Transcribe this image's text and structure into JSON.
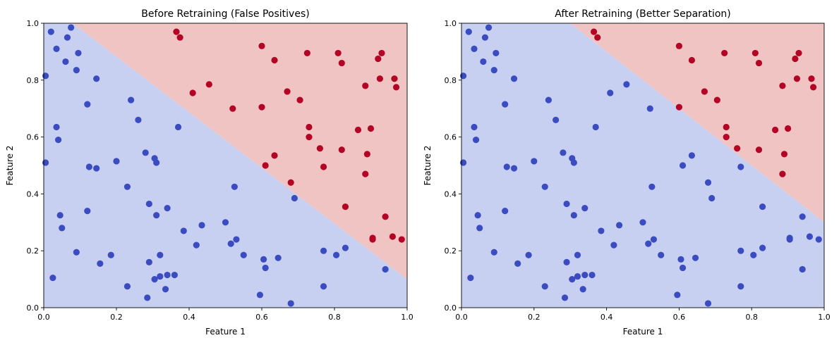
{
  "colors": {
    "class0_region": "#c8d0f2",
    "class1_region": "#efc4c3",
    "class0_point": "#3b4cc0",
    "class1_point": "#b40426"
  },
  "chart_data": [
    {
      "type": "scatter",
      "title": "Before Retraining (False Positives)",
      "xlabel": "Feature 1",
      "ylabel": "Feature 2",
      "xlim": [
        0,
        1
      ],
      "ylim": [
        0,
        1
      ],
      "xticks": [
        "0.0",
        "0.2",
        "0.4",
        "0.6",
        "0.8",
        "1.0"
      ],
      "yticks": [
        "0.0",
        "0.2",
        "0.4",
        "0.6",
        "0.8",
        "1.0"
      ],
      "grid": false,
      "decision_boundary": [
        [
          0.08,
          1.0
        ],
        [
          1.0,
          0.1
        ]
      ],
      "points_class0": [
        [
          0.005,
          0.815
        ],
        [
          0.02,
          0.97
        ],
        [
          0.035,
          0.91
        ],
        [
          0.06,
          0.865
        ],
        [
          0.065,
          0.95
        ],
        [
          0.075,
          0.985
        ],
        [
          0.09,
          0.835
        ],
        [
          0.095,
          0.895
        ],
        [
          0.145,
          0.805
        ],
        [
          0.12,
          0.715
        ],
        [
          0.035,
          0.635
        ],
        [
          0.04,
          0.59
        ],
        [
          0.005,
          0.51
        ],
        [
          0.125,
          0.495
        ],
        [
          0.145,
          0.49
        ],
        [
          0.2,
          0.515
        ],
        [
          0.24,
          0.73
        ],
        [
          0.26,
          0.66
        ],
        [
          0.28,
          0.545
        ],
        [
          0.305,
          0.525
        ],
        [
          0.31,
          0.51
        ],
        [
          0.37,
          0.635
        ],
        [
          0.23,
          0.425
        ],
        [
          0.12,
          0.34
        ],
        [
          0.045,
          0.325
        ],
        [
          0.05,
          0.28
        ],
        [
          0.29,
          0.365
        ],
        [
          0.31,
          0.325
        ],
        [
          0.34,
          0.35
        ],
        [
          0.385,
          0.27
        ],
        [
          0.435,
          0.29
        ],
        [
          0.42,
          0.22
        ],
        [
          0.5,
          0.3
        ],
        [
          0.53,
          0.24
        ],
        [
          0.525,
          0.425
        ],
        [
          0.515,
          0.225
        ],
        [
          0.55,
          0.185
        ],
        [
          0.09,
          0.195
        ],
        [
          0.155,
          0.155
        ],
        [
          0.185,
          0.185
        ],
        [
          0.025,
          0.105
        ],
        [
          0.23,
          0.075
        ],
        [
          0.29,
          0.16
        ],
        [
          0.32,
          0.185
        ],
        [
          0.305,
          0.1
        ],
        [
          0.32,
          0.11
        ],
        [
          0.34,
          0.115
        ],
        [
          0.36,
          0.115
        ],
        [
          0.335,
          0.065
        ],
        [
          0.285,
          0.035
        ],
        [
          0.605,
          0.17
        ],
        [
          0.61,
          0.14
        ],
        [
          0.645,
          0.175
        ],
        [
          0.595,
          0.045
        ],
        [
          0.69,
          0.385
        ],
        [
          0.68,
          0.015
        ],
        [
          0.77,
          0.2
        ],
        [
          0.77,
          0.075
        ],
        [
          0.805,
          0.185
        ],
        [
          0.83,
          0.21
        ],
        [
          0.94,
          0.135
        ]
      ],
      "points_class1": [
        [
          0.365,
          0.97
        ],
        [
          0.375,
          0.95
        ],
        [
          0.41,
          0.755
        ],
        [
          0.455,
          0.785
        ],
        [
          0.52,
          0.7
        ],
        [
          0.6,
          0.92
        ],
        [
          0.635,
          0.87
        ],
        [
          0.6,
          0.705
        ],
        [
          0.67,
          0.76
        ],
        [
          0.705,
          0.73
        ],
        [
          0.725,
          0.895
        ],
        [
          0.81,
          0.895
        ],
        [
          0.82,
          0.86
        ],
        [
          0.93,
          0.895
        ],
        [
          0.92,
          0.875
        ],
        [
          0.925,
          0.805
        ],
        [
          0.885,
          0.78
        ],
        [
          0.965,
          0.805
        ],
        [
          0.97,
          0.775
        ],
        [
          0.73,
          0.635
        ],
        [
          0.73,
          0.6
        ],
        [
          0.76,
          0.56
        ],
        [
          0.77,
          0.495
        ],
        [
          0.82,
          0.555
        ],
        [
          0.865,
          0.625
        ],
        [
          0.9,
          0.63
        ],
        [
          0.89,
          0.54
        ],
        [
          0.885,
          0.47
        ],
        [
          0.61,
          0.5
        ],
        [
          0.635,
          0.535
        ],
        [
          0.68,
          0.44
        ],
        [
          0.83,
          0.355
        ],
        [
          0.94,
          0.32
        ],
        [
          0.905,
          0.245
        ],
        [
          0.905,
          0.24
        ],
        [
          0.96,
          0.25
        ],
        [
          0.985,
          0.24
        ]
      ]
    },
    {
      "type": "scatter",
      "title": "After Retraining (Better Separation)",
      "xlabel": "Feature 1",
      "ylabel": "Feature 2",
      "xlim": [
        0,
        1
      ],
      "ylim": [
        0,
        1
      ],
      "xticks": [
        "0.0",
        "0.2",
        "0.4",
        "0.6",
        "0.8",
        "1.0"
      ],
      "yticks": [
        "0.0",
        "0.2",
        "0.4",
        "0.6",
        "0.8",
        "1.0"
      ],
      "grid": false,
      "decision_boundary": [
        [
          0.3,
          1.0
        ],
        [
          1.0,
          0.3
        ]
      ],
      "points_class0": [
        [
          0.005,
          0.815
        ],
        [
          0.02,
          0.97
        ],
        [
          0.035,
          0.91
        ],
        [
          0.06,
          0.865
        ],
        [
          0.065,
          0.95
        ],
        [
          0.075,
          0.985
        ],
        [
          0.09,
          0.835
        ],
        [
          0.095,
          0.895
        ],
        [
          0.145,
          0.805
        ],
        [
          0.12,
          0.715
        ],
        [
          0.035,
          0.635
        ],
        [
          0.04,
          0.59
        ],
        [
          0.005,
          0.51
        ],
        [
          0.125,
          0.495
        ],
        [
          0.145,
          0.49
        ],
        [
          0.2,
          0.515
        ],
        [
          0.24,
          0.73
        ],
        [
          0.26,
          0.66
        ],
        [
          0.28,
          0.545
        ],
        [
          0.305,
          0.525
        ],
        [
          0.31,
          0.51
        ],
        [
          0.37,
          0.635
        ],
        [
          0.23,
          0.425
        ],
        [
          0.12,
          0.34
        ],
        [
          0.045,
          0.325
        ],
        [
          0.05,
          0.28
        ],
        [
          0.29,
          0.365
        ],
        [
          0.31,
          0.325
        ],
        [
          0.34,
          0.35
        ],
        [
          0.385,
          0.27
        ],
        [
          0.435,
          0.29
        ],
        [
          0.42,
          0.22
        ],
        [
          0.5,
          0.3
        ],
        [
          0.53,
          0.24
        ],
        [
          0.525,
          0.425
        ],
        [
          0.515,
          0.225
        ],
        [
          0.55,
          0.185
        ],
        [
          0.09,
          0.195
        ],
        [
          0.155,
          0.155
        ],
        [
          0.185,
          0.185
        ],
        [
          0.025,
          0.105
        ],
        [
          0.23,
          0.075
        ],
        [
          0.29,
          0.16
        ],
        [
          0.32,
          0.185
        ],
        [
          0.305,
          0.1
        ],
        [
          0.32,
          0.11
        ],
        [
          0.34,
          0.115
        ],
        [
          0.36,
          0.115
        ],
        [
          0.335,
          0.065
        ],
        [
          0.285,
          0.035
        ],
        [
          0.605,
          0.17
        ],
        [
          0.61,
          0.14
        ],
        [
          0.645,
          0.175
        ],
        [
          0.595,
          0.045
        ],
        [
          0.69,
          0.385
        ],
        [
          0.68,
          0.015
        ],
        [
          0.77,
          0.2
        ],
        [
          0.77,
          0.075
        ],
        [
          0.805,
          0.185
        ],
        [
          0.83,
          0.21
        ],
        [
          0.94,
          0.135
        ],
        [
          0.41,
          0.755
        ],
        [
          0.455,
          0.785
        ],
        [
          0.52,
          0.7
        ],
        [
          0.61,
          0.5
        ],
        [
          0.635,
          0.535
        ],
        [
          0.68,
          0.44
        ],
        [
          0.77,
          0.495
        ],
        [
          0.83,
          0.355
        ],
        [
          0.94,
          0.32
        ],
        [
          0.905,
          0.245
        ],
        [
          0.905,
          0.24
        ],
        [
          0.96,
          0.25
        ],
        [
          0.985,
          0.24
        ]
      ],
      "points_class1": [
        [
          0.365,
          0.97
        ],
        [
          0.375,
          0.95
        ],
        [
          0.6,
          0.92
        ],
        [
          0.635,
          0.87
        ],
        [
          0.6,
          0.705
        ],
        [
          0.67,
          0.76
        ],
        [
          0.705,
          0.73
        ],
        [
          0.725,
          0.895
        ],
        [
          0.81,
          0.895
        ],
        [
          0.82,
          0.86
        ],
        [
          0.93,
          0.895
        ],
        [
          0.92,
          0.875
        ],
        [
          0.925,
          0.805
        ],
        [
          0.885,
          0.78
        ],
        [
          0.965,
          0.805
        ],
        [
          0.97,
          0.775
        ],
        [
          0.73,
          0.635
        ],
        [
          0.73,
          0.6
        ],
        [
          0.76,
          0.56
        ],
        [
          0.82,
          0.555
        ],
        [
          0.865,
          0.625
        ],
        [
          0.9,
          0.63
        ],
        [
          0.89,
          0.54
        ],
        [
          0.885,
          0.47
        ]
      ]
    }
  ]
}
